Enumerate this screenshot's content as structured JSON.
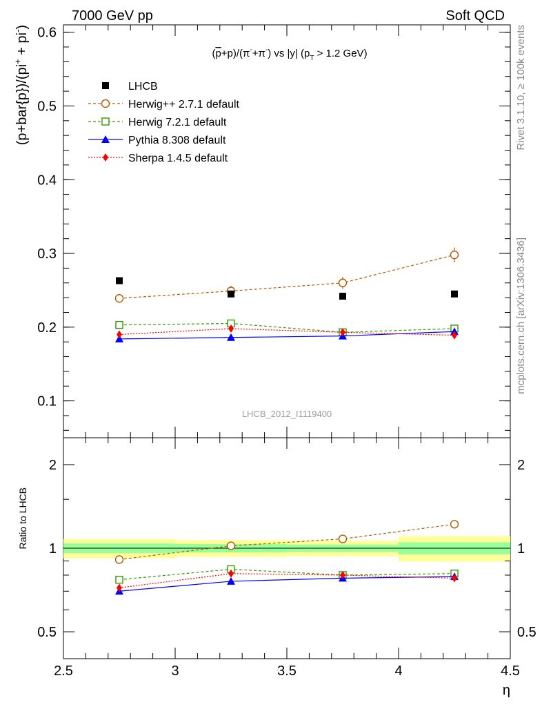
{
  "header": {
    "left": "7000 GeV pp",
    "right": "Soft QCD"
  },
  "side": {
    "rivet": "Rivet 3.1.10, ≥ 100k events",
    "source": "mcplots.cern.ch [arXiv:1306.3436]"
  },
  "chart_data": {
    "type": "line",
    "title_parts": {
      "a": "(",
      "pbar": "p",
      "b": "+p)/(π",
      "sup1": "-",
      "c": "+π",
      "sup2": "-",
      "d": ") vs |y| (p",
      "sub": "T",
      "e": " > 1.2 GeV)"
    },
    "ylabel_parts": {
      "a": "(p+bar{p})/(pi",
      "sup": "+",
      "b": " + pi",
      "sup2": "-",
      "c": ")"
    },
    "ratio_ylabel": "Ratio to LHCB",
    "xlabel": "η",
    "watermark": "LHCB_2012_I1119400",
    "xlim": [
      2.5,
      4.5
    ],
    "ylim": [
      0.05,
      0.61
    ],
    "ratio_ylim": [
      0.4,
      2.5
    ],
    "x_ticks": [
      2.5,
      3,
      3.5,
      4,
      4.5
    ],
    "x_tick_labels": [
      "2.5",
      "3",
      "3.5",
      "4",
      "4.5"
    ],
    "y_ticks": [
      0.1,
      0.2,
      0.3,
      0.4,
      0.5,
      0.6
    ],
    "y_tick_labels": [
      "0.1",
      "0.2",
      "0.3",
      "0.4",
      "0.5",
      "0.6"
    ],
    "ratio_y_ticks": [
      0.5,
      1,
      2
    ],
    "ratio_y_tick_labels": [
      "0.5",
      "1",
      "2"
    ],
    "x": [
      2.75,
      3.25,
      3.75,
      4.25
    ],
    "x_bins": [
      [
        2.5,
        3.0
      ],
      [
        3.0,
        3.5
      ],
      [
        3.5,
        4.0
      ],
      [
        4.0,
        4.5
      ]
    ],
    "data": {
      "name": "LHCB",
      "values": [
        0.263,
        0.245,
        0.242,
        0.245
      ],
      "band_stat": [
        0.04,
        0.035,
        0.03,
        0.05
      ],
      "band_total": [
        0.08,
        0.07,
        0.065,
        0.105
      ]
    },
    "series": [
      {
        "name": "Herwig++ 2.7.1 default",
        "color": "#b35900",
        "marker": "circle-open",
        "dash": "dashed",
        "values": [
          0.239,
          0.249,
          0.26,
          0.298
        ],
        "errors": [
          0.006,
          0.007,
          0.008,
          0.01
        ],
        "ratio": [
          0.91,
          1.02,
          1.08,
          1.22
        ]
      },
      {
        "name": "Herwig 7.2.1 default",
        "color": "#339900",
        "marker": "square-open",
        "dash": "dashed",
        "values": [
          0.203,
          0.205,
          0.193,
          0.198
        ],
        "errors": [
          0.003,
          0.003,
          0.003,
          0.003
        ],
        "ratio": [
          0.77,
          0.84,
          0.8,
          0.81
        ]
      },
      {
        "name": "Pythia 8.308 default",
        "color": "#0000ff",
        "marker": "triangle",
        "dash": "solid",
        "values": [
          0.184,
          0.186,
          0.188,
          0.194
        ],
        "errors": [
          0.002,
          0.002,
          0.002,
          0.002
        ],
        "ratio": [
          0.7,
          0.76,
          0.78,
          0.79
        ]
      },
      {
        "name": "Sherpa 1.4.5 default",
        "color": "#ff0000",
        "marker": "diamond",
        "dash": "dotted",
        "values": [
          0.19,
          0.198,
          0.193,
          0.189
        ],
        "errors": [
          0.002,
          0.002,
          0.002,
          0.002
        ],
        "ratio": [
          0.72,
          0.81,
          0.8,
          0.78
        ]
      }
    ]
  }
}
